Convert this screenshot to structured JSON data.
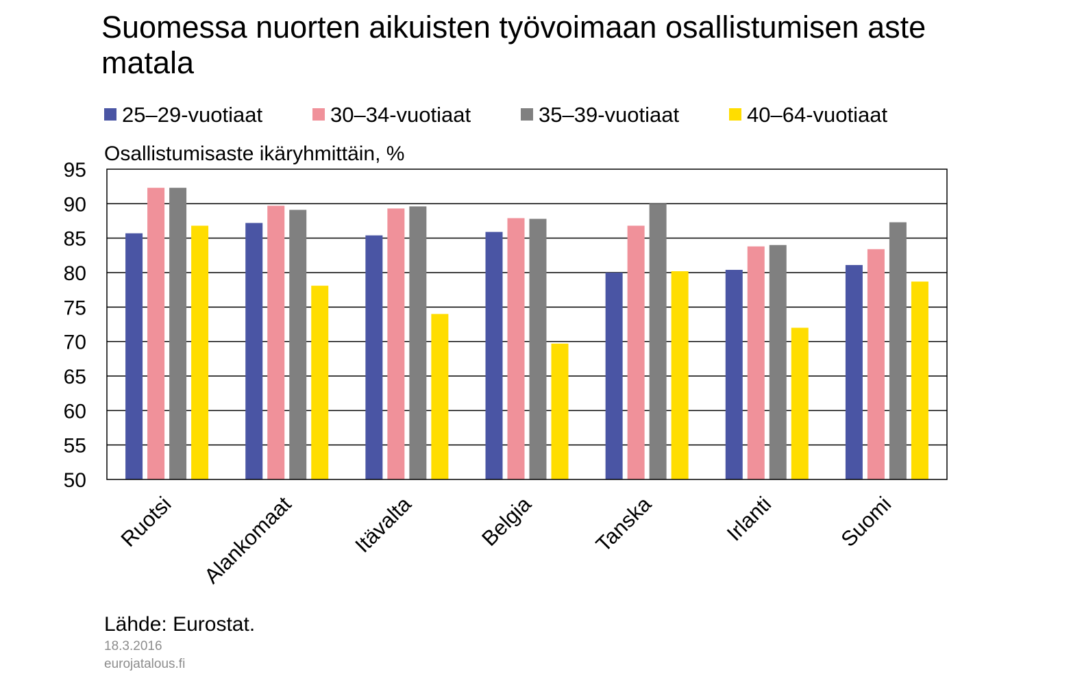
{
  "title": "Suomessa nuorten aikuisten työvoimaan osallistumisen aste matala",
  "source": "Lähde: Eurostat.",
  "date": "18.3.2016",
  "site": "eurojatalous.fi",
  "chart_data": {
    "type": "bar",
    "title": "Suomessa nuorten aikuisten työvoimaan osallistumisen aste matala",
    "ylabel": "Osallistumisaste ikäryhmittäin, %",
    "xlabel": "",
    "ylim": [
      50,
      95
    ],
    "yticks": [
      50,
      55,
      60,
      65,
      70,
      75,
      80,
      85,
      90,
      95
    ],
    "grid": true,
    "legend_position": "top",
    "categories": [
      "Ruotsi",
      "Alankomaat",
      "Itävalta",
      "Belgia",
      "Tanska",
      "Irlanti",
      "Suomi"
    ],
    "series": [
      {
        "name": "25–29-vuotiaat",
        "color": "#4a55a4",
        "values": [
          85.7,
          87.2,
          85.4,
          85.9,
          80.0,
          80.4,
          81.1
        ]
      },
      {
        "name": "30–34-vuotiaat",
        "color": "#f0919a",
        "values": [
          92.3,
          89.7,
          89.3,
          87.9,
          86.8,
          83.8,
          83.4
        ]
      },
      {
        "name": "35–39-vuotiaat",
        "color": "#808080",
        "values": [
          92.3,
          89.1,
          89.6,
          87.8,
          90.0,
          84.0,
          87.3
        ]
      },
      {
        "name": "40–64-vuotiaat",
        "color": "#ffdd00",
        "values": [
          86.8,
          78.1,
          74.0,
          69.7,
          80.2,
          72.0,
          78.7
        ]
      }
    ]
  }
}
